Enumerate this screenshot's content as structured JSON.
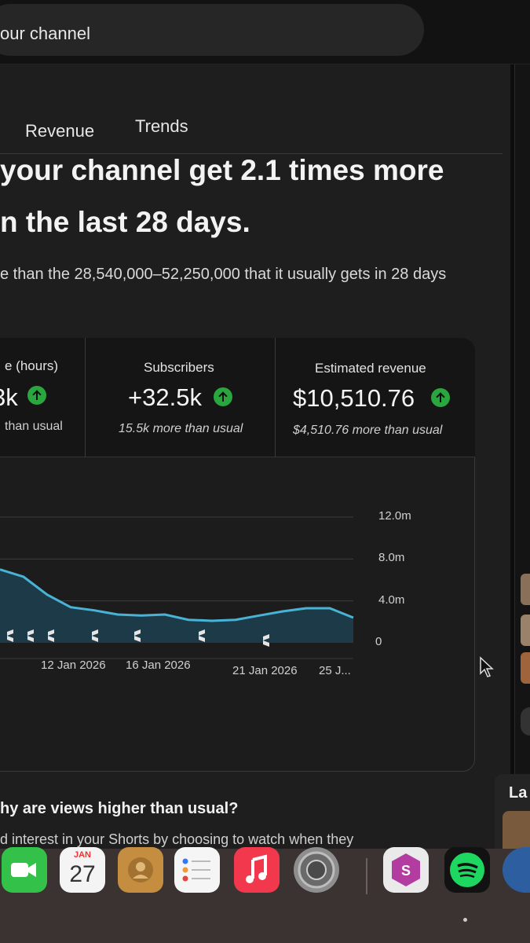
{
  "search": {
    "text": "our channel"
  },
  "tabs": [
    {
      "label": "Revenue"
    },
    {
      "label": "Trends"
    }
  ],
  "headline": {
    "line1": "your channel get 2.1 times more",
    "line2": "n the last 28 days."
  },
  "subline": "e than the 28,540,000–52,250,000 that it usually gets in 28 days",
  "metrics": [
    {
      "label": "e (hours)",
      "value": "3k",
      "sub": "than usual"
    },
    {
      "label": "Subscribers",
      "value": "+32.5k",
      "sub": "15.5k more than usual"
    },
    {
      "label": "Estimated revenue",
      "value": "$10,510.76",
      "sub": "$4,510.76 more than usual"
    }
  ],
  "chart_data": {
    "type": "area",
    "y_ticks": [
      "12.0m",
      "8.0m",
      "4.0m",
      "0"
    ],
    "ylim": [
      0,
      12000000
    ],
    "x_labels": [
      "12 Jan 2026",
      "16 Jan 2026",
      "21 Jan 2026",
      "25 J..."
    ],
    "series": [
      {
        "values": [
          7000000,
          6300000,
          4600000,
          3400000,
          3100000,
          2700000,
          2600000,
          2700000,
          2200000,
          2100000,
          2200000,
          2600000,
          3000000,
          3300000,
          3300000,
          2400000
        ]
      }
    ],
    "colors": {
      "line": "#49b3d6",
      "fill": "#1d3a48"
    }
  },
  "why": {
    "title": "hy are views higher than usual?",
    "sub": "d interest in your Shorts by choosing to watch when they"
  },
  "side_card": {
    "label": "La"
  },
  "dock": {
    "calendar_month": "JAN",
    "calendar_day": "27",
    "icons": [
      "facetime-icon",
      "calendar-icon",
      "contacts-icon",
      "reminders-icon",
      "music-icon",
      "system-settings-icon",
      "setapp-icon",
      "spotify-icon",
      "browser-icon"
    ]
  }
}
